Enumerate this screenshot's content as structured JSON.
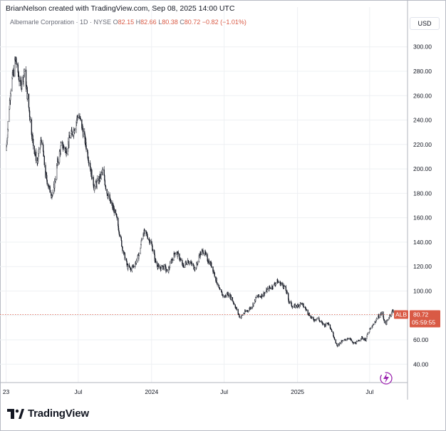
{
  "header": {
    "credit": "BrianNelson created with TradingView.com, Sep 08, 2025 14:00 UTC"
  },
  "legend": {
    "name": "Albemarle Corporation · 1D · NYSE",
    "o_label": "O",
    "o_value": "82.15",
    "h_label": "H",
    "h_value": "82.66",
    "l_label": "L",
    "l_value": "80.38",
    "c_label": "C",
    "c_value": "80.72",
    "change": "−0.82 (−1.01%)"
  },
  "currency_button": "USD",
  "price_tag": {
    "symbol": "ALB",
    "price": "80.72",
    "countdown": "05:59:55"
  },
  "brand": {
    "text": "TradingView"
  },
  "colors": {
    "up": "#131722",
    "down": "#131722",
    "price_line": "#d95a45",
    "grid": "#eef0f3",
    "icon_accent": "#9c27b0"
  },
  "icons": {
    "replay": "lightning-replay-icon",
    "logo": "tradingview-logo-icon"
  },
  "chart_data": {
    "type": "candlestick",
    "title": "",
    "xlabel": "",
    "ylabel": "",
    "ylim": [
      25,
      315
    ],
    "y_ticks": [
      40,
      60,
      80,
      100,
      120,
      140,
      160,
      180,
      200,
      220,
      240,
      260,
      280,
      300
    ],
    "y_tick_labels": [
      "40.00",
      "60.00",
      "80.00",
      "100.00",
      "120.00",
      "140.00",
      "160.00",
      "180.00",
      "200.00",
      "220.00",
      "240.00",
      "260.00",
      "280.00",
      "300.00"
    ],
    "x_ticks": [
      {
        "date": "2023-01-01",
        "label": "23"
      },
      {
        "date": "2023-07-01",
        "label": "Jul"
      },
      {
        "date": "2024-01-01",
        "label": "2024"
      },
      {
        "date": "2024-07-01",
        "label": "Jul"
      },
      {
        "date": "2025-01-01",
        "label": "2025"
      },
      {
        "date": "2025-07-01",
        "label": "Jul"
      }
    ],
    "xlim": [
      "2022-12-31",
      "2025-10-04"
    ],
    "grid": true,
    "last_price": 80.72,
    "path": [
      [
        "2023-01-01",
        215
      ],
      [
        "2023-01-12",
        265
      ],
      [
        "2023-01-25",
        290
      ],
      [
        "2023-02-06",
        268
      ],
      [
        "2023-02-16",
        280
      ],
      [
        "2023-03-01",
        245
      ],
      [
        "2023-03-10",
        220
      ],
      [
        "2023-03-20",
        205
      ],
      [
        "2023-03-31",
        225
      ],
      [
        "2023-04-10",
        195
      ],
      [
        "2023-04-20",
        183
      ],
      [
        "2023-04-28",
        178
      ],
      [
        "2023-05-10",
        205
      ],
      [
        "2023-05-20",
        220
      ],
      [
        "2023-06-01",
        215
      ],
      [
        "2023-06-10",
        226
      ],
      [
        "2023-06-20",
        232
      ],
      [
        "2023-07-01",
        245
      ],
      [
        "2023-07-10",
        235
      ],
      [
        "2023-07-20",
        220
      ],
      [
        "2023-08-01",
        200
      ],
      [
        "2023-08-10",
        185
      ],
      [
        "2023-08-20",
        190
      ],
      [
        "2023-09-01",
        198
      ],
      [
        "2023-09-10",
        182
      ],
      [
        "2023-09-20",
        172
      ],
      [
        "2023-10-01",
        165
      ],
      [
        "2023-10-10",
        152
      ],
      [
        "2023-10-20",
        135
      ],
      [
        "2023-11-01",
        120
      ],
      [
        "2023-11-10",
        118
      ],
      [
        "2023-11-20",
        122
      ],
      [
        "2023-12-01",
        130
      ],
      [
        "2023-12-10",
        148
      ],
      [
        "2023-12-20",
        146
      ],
      [
        "2024-01-01",
        138
      ],
      [
        "2024-01-10",
        125
      ],
      [
        "2024-01-20",
        118
      ],
      [
        "2024-02-01",
        120
      ],
      [
        "2024-02-10",
        115
      ],
      [
        "2024-02-20",
        125
      ],
      [
        "2024-03-01",
        132
      ],
      [
        "2024-03-10",
        128
      ],
      [
        "2024-03-20",
        120
      ],
      [
        "2024-04-01",
        125
      ],
      [
        "2024-04-10",
        122
      ],
      [
        "2024-04-20",
        118
      ],
      [
        "2024-05-01",
        130
      ],
      [
        "2024-05-10",
        133
      ],
      [
        "2024-05-20",
        126
      ],
      [
        "2024-06-01",
        120
      ],
      [
        "2024-06-10",
        110
      ],
      [
        "2024-06-20",
        100
      ],
      [
        "2024-07-01",
        95
      ],
      [
        "2024-07-10",
        98
      ],
      [
        "2024-07-20",
        94
      ],
      [
        "2024-08-01",
        85
      ],
      [
        "2024-08-10",
        78
      ],
      [
        "2024-08-20",
        82
      ],
      [
        "2024-09-01",
        85
      ],
      [
        "2024-09-10",
        88
      ],
      [
        "2024-09-20",
        95
      ],
      [
        "2024-10-01",
        96
      ],
      [
        "2024-10-10",
        98
      ],
      [
        "2024-10-20",
        102
      ],
      [
        "2024-11-01",
        104
      ],
      [
        "2024-11-10",
        108
      ],
      [
        "2024-11-20",
        106
      ],
      [
        "2024-12-01",
        103
      ],
      [
        "2024-12-10",
        92
      ],
      [
        "2024-12-20",
        87
      ],
      [
        "2025-01-01",
        88
      ],
      [
        "2025-01-10",
        90
      ],
      [
        "2025-01-20",
        86
      ],
      [
        "2025-02-01",
        80
      ],
      [
        "2025-02-10",
        76
      ],
      [
        "2025-02-20",
        78
      ],
      [
        "2025-03-01",
        74
      ],
      [
        "2025-03-10",
        72
      ],
      [
        "2025-03-20",
        74
      ],
      [
        "2025-04-01",
        64
      ],
      [
        "2025-04-10",
        55
      ],
      [
        "2025-04-20",
        58
      ],
      [
        "2025-05-01",
        60
      ],
      [
        "2025-05-10",
        62
      ],
      [
        "2025-05-20",
        57
      ],
      [
        "2025-06-01",
        58
      ],
      [
        "2025-06-10",
        62
      ],
      [
        "2025-06-20",
        60
      ],
      [
        "2025-07-01",
        68
      ],
      [
        "2025-07-10",
        72
      ],
      [
        "2025-07-20",
        78
      ],
      [
        "2025-08-01",
        82
      ],
      [
        "2025-08-10",
        72
      ],
      [
        "2025-08-20",
        80
      ],
      [
        "2025-08-28",
        84
      ],
      [
        "2025-09-08",
        80.72
      ]
    ]
  }
}
